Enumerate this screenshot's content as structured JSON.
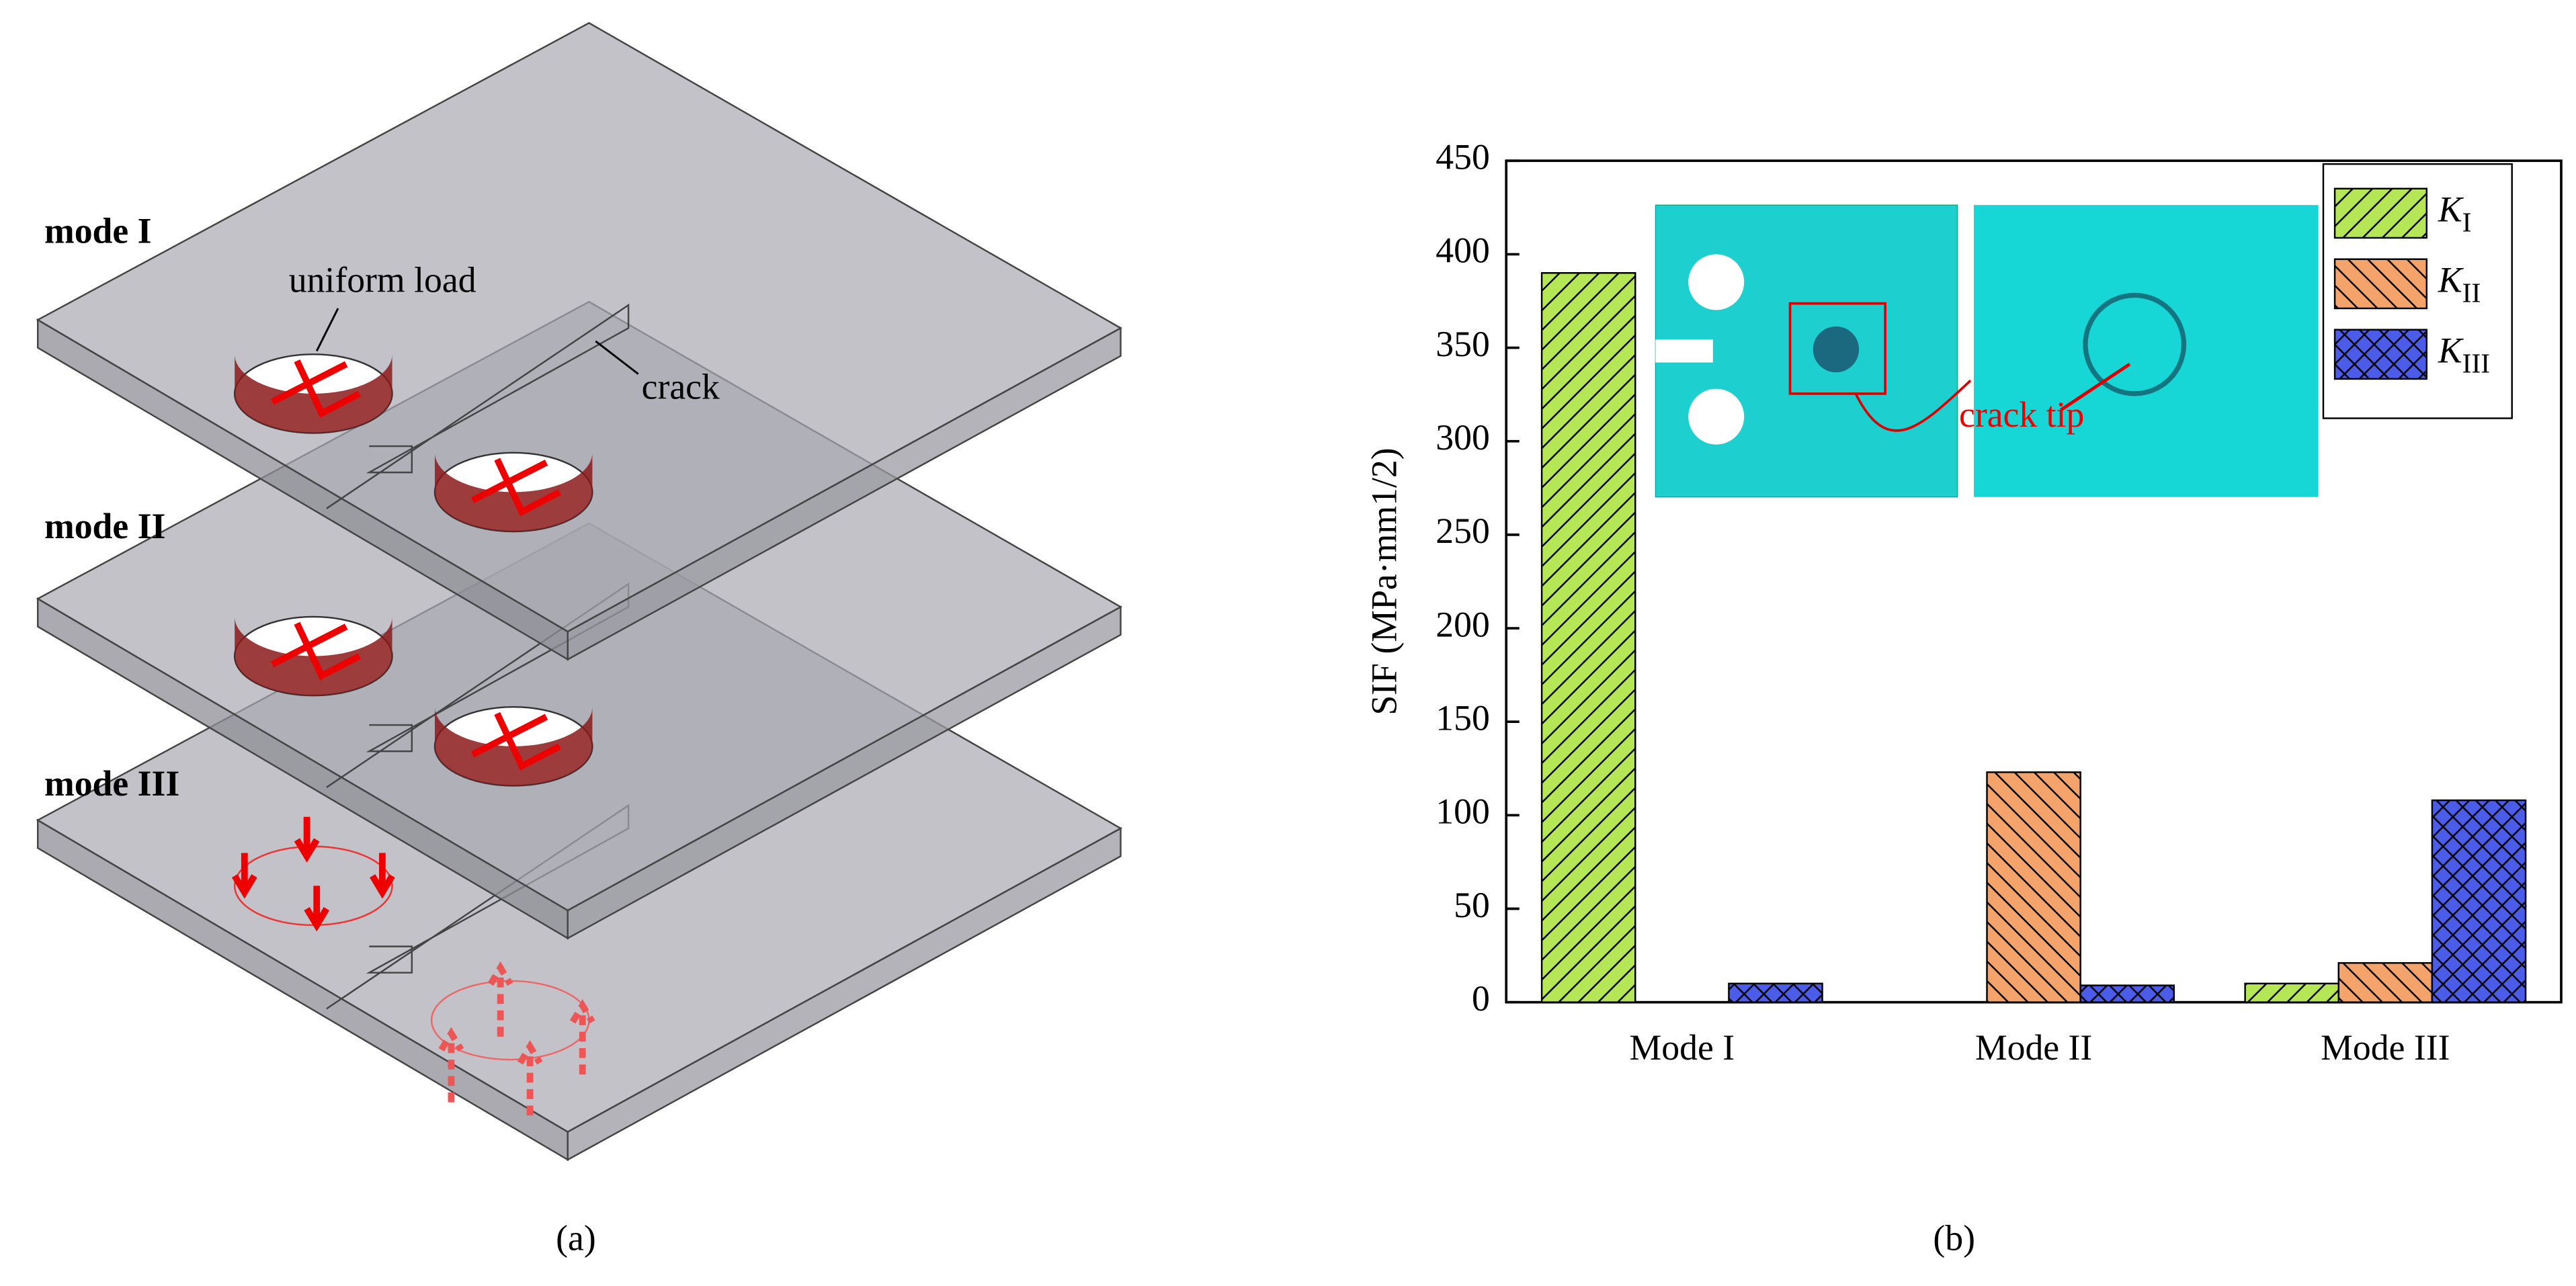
{
  "figure": {
    "labels": [
      "mode I",
      "mode II",
      "mode III"
    ],
    "uniform_load": "uniform load",
    "crack": "crack",
    "panel_a": "(a)",
    "panel_b": "(b)",
    "inset_label": "crack tip"
  },
  "chart_data": {
    "type": "bar",
    "ylabel": "SIF (MPa·mm1/2)",
    "categories": [
      "Mode I",
      "Mode II",
      "Mode III"
    ],
    "series": [
      {
        "name": "KI",
        "color": "#b5e655",
        "hatch": "/",
        "values": [
          390,
          0,
          10
        ]
      },
      {
        "name": "KII",
        "color": "#f4a46a",
        "hatch": "\\",
        "values": [
          0,
          123,
          21
        ]
      },
      {
        "name": "KIII",
        "color": "#4a5ce8",
        "hatch": "x",
        "values": [
          10,
          9,
          108
        ]
      }
    ],
    "ylim": [
      0,
      450
    ],
    "yticks": [
      0,
      50,
      100,
      150,
      200,
      250,
      300,
      350,
      400,
      450
    ],
    "legend": "upper right"
  }
}
